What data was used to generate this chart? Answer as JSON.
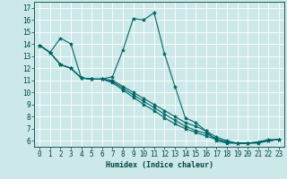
{
  "series": [
    {
      "x": [
        0,
        1,
        2,
        3,
        4,
        5,
        6,
        7,
        8,
        9,
        10,
        11,
        12,
        13,
        14,
        15,
        16,
        17,
        18,
        19,
        20,
        21,
        22,
        23
      ],
      "y": [
        13.9,
        13.3,
        14.5,
        14.0,
        11.2,
        11.1,
        11.1,
        11.3,
        13.5,
        16.1,
        16.0,
        16.6,
        13.2,
        10.5,
        7.9,
        7.5,
        6.8,
        6.0,
        5.8,
        5.8,
        5.8,
        5.9,
        6.1,
        6.1
      ]
    },
    {
      "x": [
        0,
        1,
        2,
        3,
        4,
        5,
        6,
        7,
        8,
        9,
        10,
        11,
        12,
        13,
        14,
        15,
        16,
        17,
        18,
        19,
        20,
        21,
        22,
        23
      ],
      "y": [
        13.9,
        13.3,
        12.3,
        12.0,
        11.2,
        11.1,
        11.1,
        11.0,
        10.5,
        10.0,
        9.5,
        9.0,
        8.5,
        8.0,
        7.5,
        7.2,
        6.8,
        6.3,
        6.0,
        5.8,
        5.8,
        5.9,
        6.0,
        6.1
      ]
    },
    {
      "x": [
        0,
        1,
        2,
        3,
        4,
        5,
        6,
        7,
        8,
        9,
        10,
        11,
        12,
        13,
        14,
        15,
        16,
        17,
        18,
        19,
        20,
        21,
        22,
        23
      ],
      "y": [
        13.9,
        13.3,
        12.3,
        12.0,
        11.2,
        11.1,
        11.1,
        10.8,
        10.2,
        9.6,
        9.0,
        8.5,
        7.9,
        7.4,
        7.0,
        6.7,
        6.4,
        6.1,
        5.9,
        5.8,
        5.8,
        5.8,
        6.0,
        6.1
      ]
    },
    {
      "x": [
        0,
        1,
        2,
        3,
        4,
        5,
        6,
        7,
        8,
        9,
        10,
        11,
        12,
        13,
        14,
        15,
        16,
        17,
        18,
        19,
        20,
        21,
        22,
        23
      ],
      "y": [
        13.9,
        13.3,
        12.3,
        12.0,
        11.2,
        11.1,
        11.1,
        10.9,
        10.35,
        9.8,
        9.25,
        8.75,
        8.2,
        7.7,
        7.2,
        6.85,
        6.6,
        6.15,
        5.9,
        5.8,
        5.8,
        5.85,
        6.0,
        6.1
      ]
    }
  ],
  "line_color": "#006666",
  "marker": "*",
  "marker_size": 3,
  "bg_color": "#cce8e8",
  "grid_color": "#ffffff",
  "axis_color": "#004444",
  "tick_color": "#004444",
  "xlabel": "Humidex (Indice chaleur)",
  "xlim": [
    -0.5,
    23.5
  ],
  "ylim": [
    5.5,
    17.5
  ],
  "yticks": [
    6,
    7,
    8,
    9,
    10,
    11,
    12,
    13,
    14,
    15,
    16,
    17
  ],
  "xticks": [
    0,
    1,
    2,
    3,
    4,
    5,
    6,
    7,
    8,
    9,
    10,
    11,
    12,
    13,
    14,
    15,
    16,
    17,
    18,
    19,
    20,
    21,
    22,
    23
  ]
}
